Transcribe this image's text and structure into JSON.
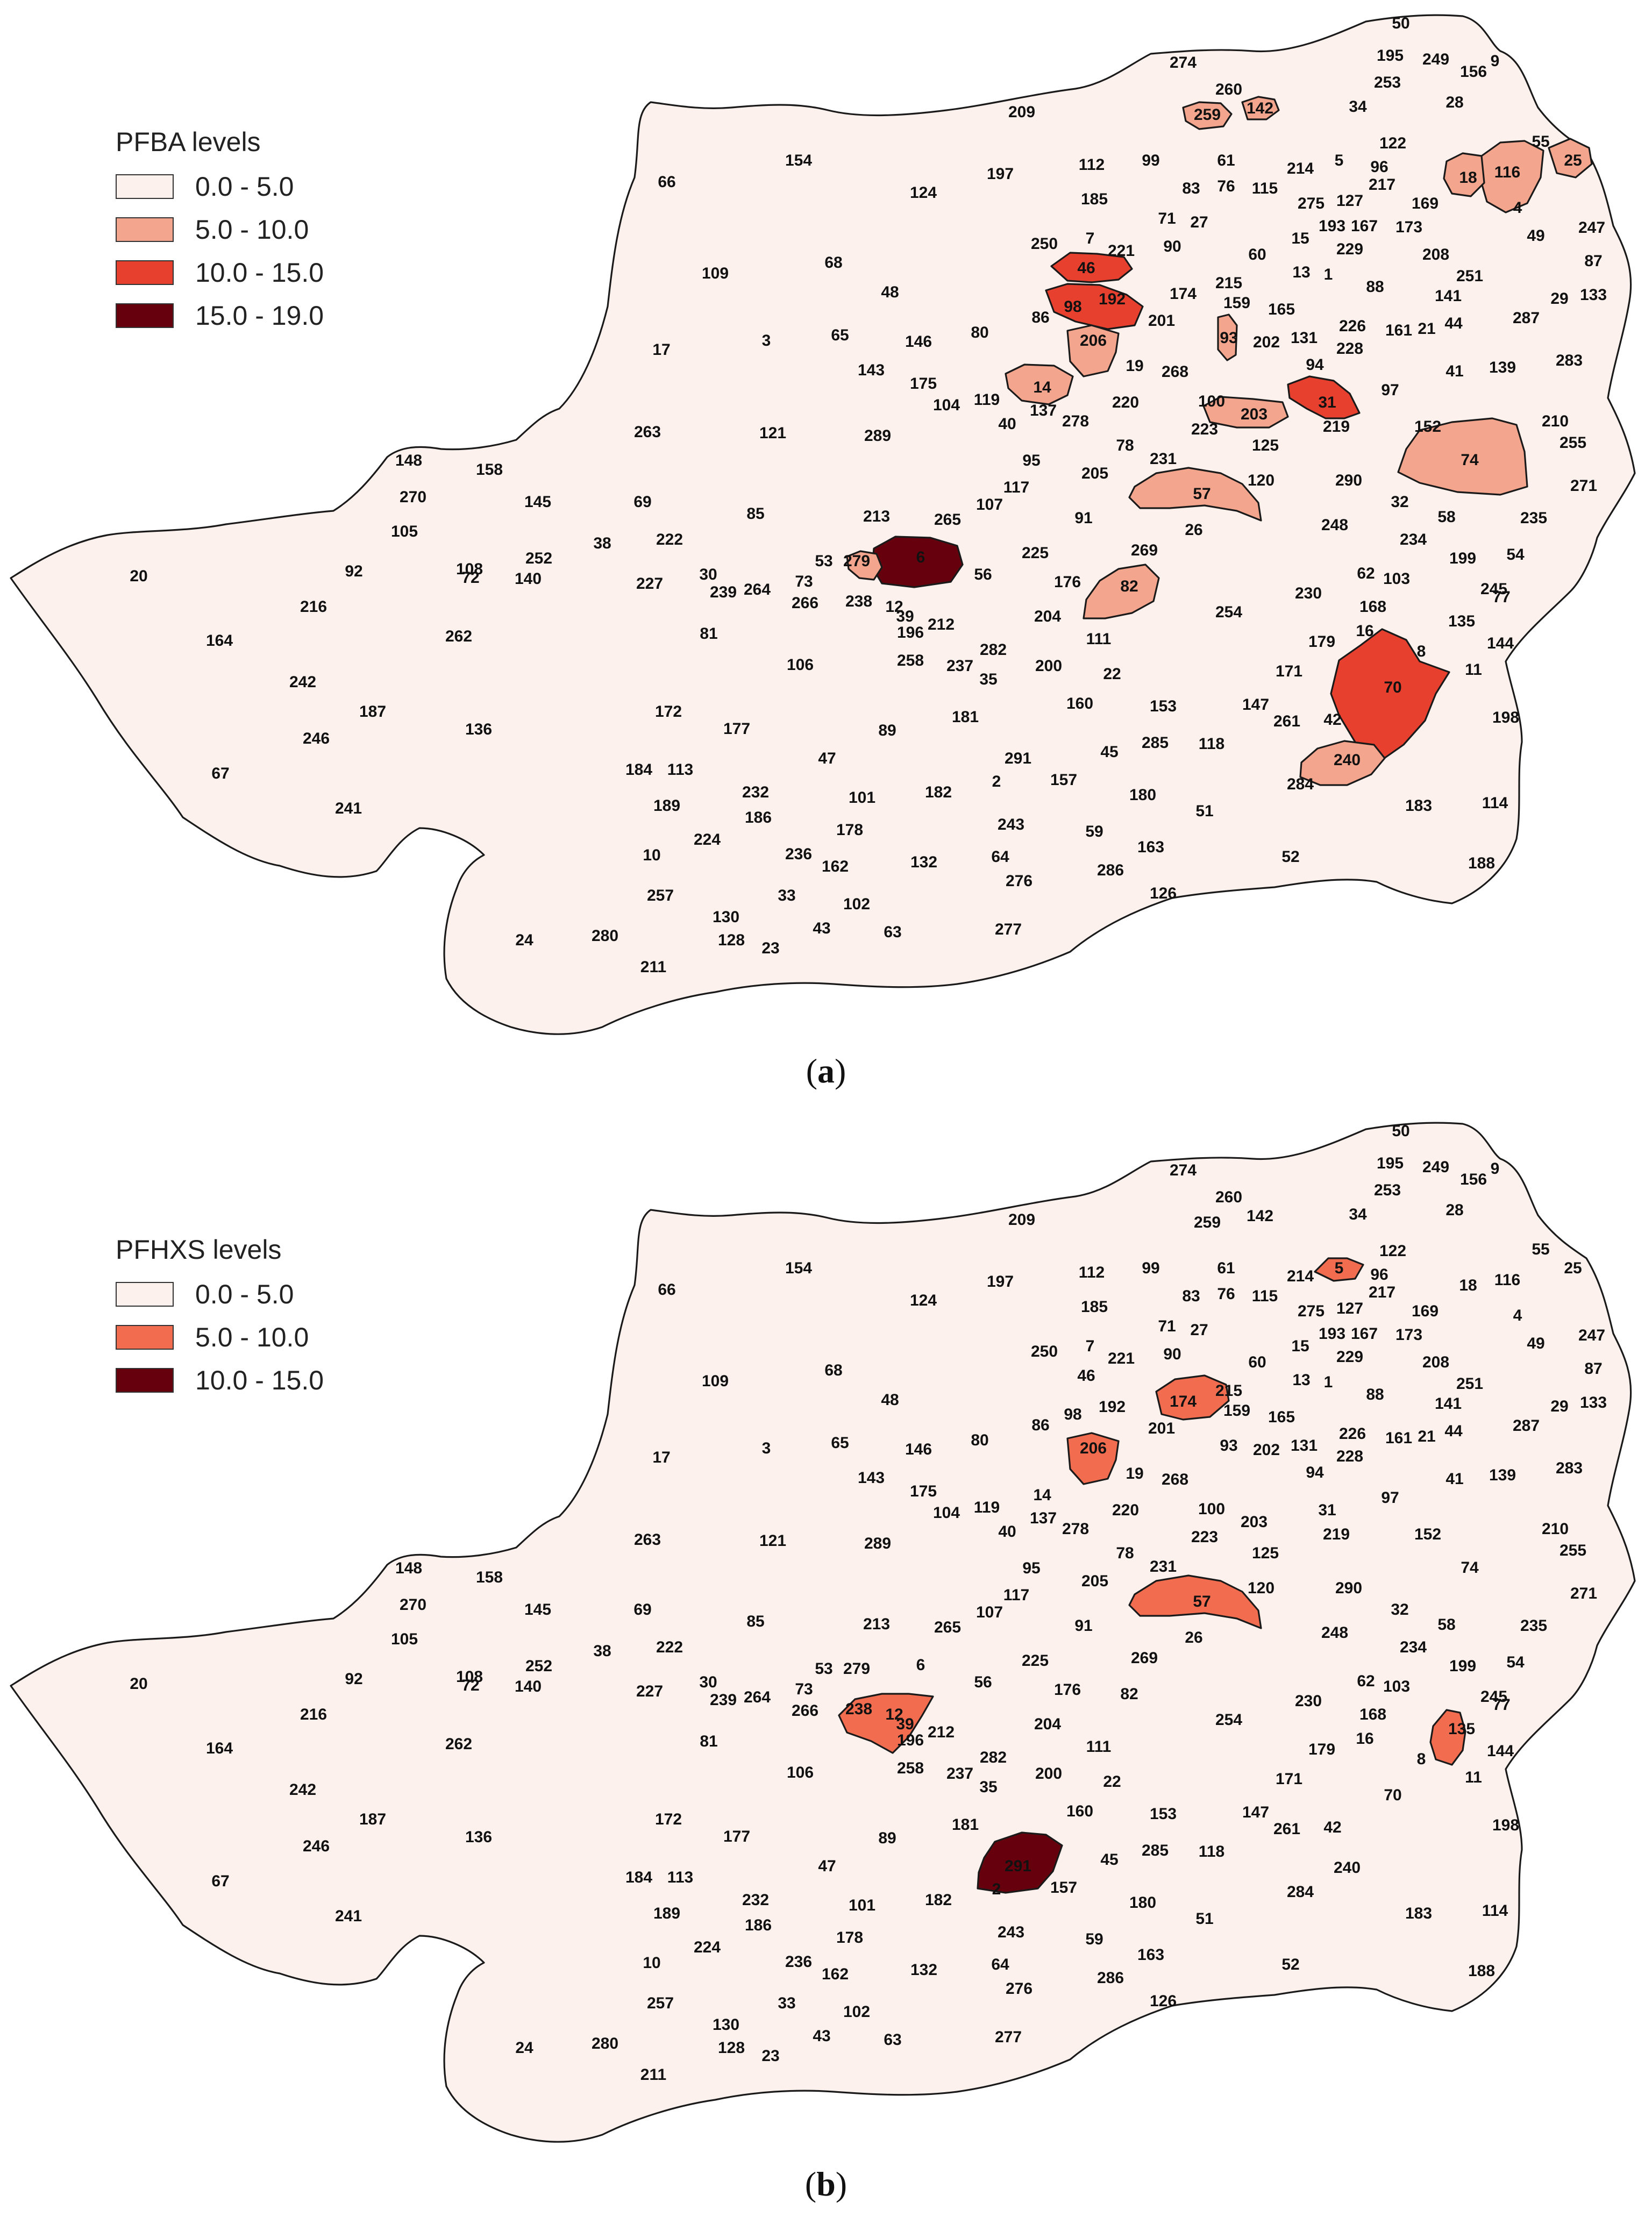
{
  "maps": [
    {
      "id": "a",
      "legend": {
        "title": "PFBA levels",
        "classes": [
          {
            "label": "0.0 - 5.0",
            "color": "#fdf1ee"
          },
          {
            "label": "5.0 - 10.0",
            "color": "#f4a58d"
          },
          {
            "label": "10.0 - 15.0",
            "color": "#e8402f"
          },
          {
            "label": "15.0 - 19.0",
            "color": "#67000d"
          }
        ]
      },
      "caption": {
        "open": "(",
        "letter": "a",
        "close": ")"
      },
      "highlighted": [
        {
          "region": "6",
          "class": 3
        },
        {
          "region": "46",
          "class": 2
        },
        {
          "region": "98",
          "class": 2
        },
        {
          "region": "31",
          "class": 2
        },
        {
          "region": "70",
          "class": 2
        },
        {
          "region": "14",
          "class": 1
        },
        {
          "region": "206",
          "class": 1
        },
        {
          "region": "203",
          "class": 1
        },
        {
          "region": "57",
          "class": 1
        },
        {
          "region": "82",
          "class": 1
        },
        {
          "region": "74",
          "class": 1
        },
        {
          "region": "240",
          "class": 1
        },
        {
          "region": "116",
          "class": 1
        },
        {
          "region": "25",
          "class": 1
        },
        {
          "region": "18",
          "class": 1
        },
        {
          "region": "259",
          "class": 1
        },
        {
          "region": "142",
          "class": 1
        },
        {
          "region": "279",
          "class": 1
        },
        {
          "region": "93",
          "class": 1
        }
      ]
    },
    {
      "id": "b",
      "legend": {
        "title": "PFHXS levels",
        "classes": [
          {
            "label": "0.0 - 5.0",
            "color": "#fdf1ee"
          },
          {
            "label": "5.0 - 10.0",
            "color": "#f26c4f"
          },
          {
            "label": "10.0 - 15.0",
            "color": "#67000d"
          }
        ]
      },
      "caption": {
        "open": "(",
        "letter": "b",
        "close": ")"
      },
      "highlighted": [
        {
          "region": "291",
          "class": 2
        },
        {
          "region": "206",
          "class": 1
        },
        {
          "region": "174",
          "class": 1
        },
        {
          "region": "57",
          "class": 1
        },
        {
          "region": "12",
          "class": 1
        },
        {
          "region": "135",
          "class": 1
        },
        {
          "region": "5",
          "class": 1
        }
      ]
    }
  ],
  "regions": [
    {
      "id": "50",
      "label": "50"
    },
    {
      "id": "195",
      "label": "195"
    },
    {
      "id": "249",
      "label": "249"
    },
    {
      "id": "156",
      "label": "156"
    },
    {
      "id": "9",
      "label": "9"
    },
    {
      "id": "274",
      "label": "274"
    },
    {
      "id": "260",
      "label": "260"
    },
    {
      "id": "253",
      "label": "253"
    },
    {
      "id": "28",
      "label": "28"
    },
    {
      "id": "34",
      "label": "34"
    },
    {
      "id": "259",
      "label": "259"
    },
    {
      "id": "142",
      "label": "142"
    },
    {
      "id": "209",
      "label": "209"
    },
    {
      "id": "122",
      "label": "122"
    },
    {
      "id": "55",
      "label": "55"
    },
    {
      "id": "25",
      "label": "25"
    },
    {
      "id": "5",
      "label": "5"
    },
    {
      "id": "96",
      "label": "96"
    },
    {
      "id": "214",
      "label": "214"
    },
    {
      "id": "112",
      "label": "112"
    },
    {
      "id": "99",
      "label": "99"
    },
    {
      "id": "61",
      "label": "61"
    },
    {
      "id": "18",
      "label": "18"
    },
    {
      "id": "116",
      "label": "116"
    },
    {
      "id": "154",
      "label": "154"
    },
    {
      "id": "197",
      "label": "197"
    },
    {
      "id": "66",
      "label": "66"
    },
    {
      "id": "124",
      "label": "124"
    },
    {
      "id": "185",
      "label": "185"
    },
    {
      "id": "83",
      "label": "83"
    },
    {
      "id": "76",
      "label": "76"
    },
    {
      "id": "115",
      "label": "115"
    },
    {
      "id": "275",
      "label": "275"
    },
    {
      "id": "127",
      "label": "127"
    },
    {
      "id": "217",
      "label": "217"
    },
    {
      "id": "169",
      "label": "169"
    },
    {
      "id": "4",
      "label": "4"
    },
    {
      "id": "71",
      "label": "71"
    },
    {
      "id": "27",
      "label": "27"
    },
    {
      "id": "193",
      "label": "193"
    },
    {
      "id": "167",
      "label": "167"
    },
    {
      "id": "173",
      "label": "173"
    },
    {
      "id": "247",
      "label": "247"
    },
    {
      "id": "49",
      "label": "49"
    },
    {
      "id": "15",
      "label": "15"
    },
    {
      "id": "229",
      "label": "229"
    },
    {
      "id": "87",
      "label": "87"
    },
    {
      "id": "250",
      "label": "250"
    },
    {
      "id": "7",
      "label": "7"
    },
    {
      "id": "221",
      "label": "221"
    },
    {
      "id": "90",
      "label": "90"
    },
    {
      "id": "60",
      "label": "60"
    },
    {
      "id": "208",
      "label": "208"
    },
    {
      "id": "109",
      "label": "109"
    },
    {
      "id": "68",
      "label": "68"
    },
    {
      "id": "46",
      "label": "46"
    },
    {
      "id": "13",
      "label": "13"
    },
    {
      "id": "1",
      "label": "1"
    },
    {
      "id": "251",
      "label": "251"
    },
    {
      "id": "215",
      "label": "215"
    },
    {
      "id": "88",
      "label": "88"
    },
    {
      "id": "48",
      "label": "48"
    },
    {
      "id": "174",
      "label": "174"
    },
    {
      "id": "192",
      "label": "192"
    },
    {
      "id": "141",
      "label": "141"
    },
    {
      "id": "29",
      "label": "29"
    },
    {
      "id": "133",
      "label": "133"
    },
    {
      "id": "86",
      "label": "86"
    },
    {
      "id": "98",
      "label": "98"
    },
    {
      "id": "159",
      "label": "159"
    },
    {
      "id": "165",
      "label": "165"
    },
    {
      "id": "201",
      "label": "201"
    },
    {
      "id": "226",
      "label": "226"
    },
    {
      "id": "161",
      "label": "161"
    },
    {
      "id": "21",
      "label": "21"
    },
    {
      "id": "44",
      "label": "44"
    },
    {
      "id": "287",
      "label": "287"
    },
    {
      "id": "80",
      "label": "80"
    },
    {
      "id": "3",
      "label": "3"
    },
    {
      "id": "65",
      "label": "65"
    },
    {
      "id": "146",
      "label": "146"
    },
    {
      "id": "93",
      "label": "93"
    },
    {
      "id": "202",
      "label": "202"
    },
    {
      "id": "131",
      "label": "131"
    },
    {
      "id": "17",
      "label": "17"
    },
    {
      "id": "206",
      "label": "206"
    },
    {
      "id": "228",
      "label": "228"
    },
    {
      "id": "283",
      "label": "283"
    },
    {
      "id": "19",
      "label": "19"
    },
    {
      "id": "268",
      "label": "268"
    },
    {
      "id": "94",
      "label": "94"
    },
    {
      "id": "143",
      "label": "143"
    },
    {
      "id": "41",
      "label": "41"
    },
    {
      "id": "139",
      "label": "139"
    },
    {
      "id": "175",
      "label": "175"
    },
    {
      "id": "104",
      "label": "104"
    },
    {
      "id": "119",
      "label": "119"
    },
    {
      "id": "14",
      "label": "14"
    },
    {
      "id": "97",
      "label": "97"
    },
    {
      "id": "137",
      "label": "137"
    },
    {
      "id": "100",
      "label": "100"
    },
    {
      "id": "203",
      "label": "203"
    },
    {
      "id": "31",
      "label": "31"
    },
    {
      "id": "263",
      "label": "263"
    },
    {
      "id": "121",
      "label": "121"
    },
    {
      "id": "289",
      "label": "289"
    },
    {
      "id": "40",
      "label": "40"
    },
    {
      "id": "278",
      "label": "278"
    },
    {
      "id": "220",
      "label": "220"
    },
    {
      "id": "223",
      "label": "223"
    },
    {
      "id": "219",
      "label": "219"
    },
    {
      "id": "152",
      "label": "152"
    },
    {
      "id": "210",
      "label": "210"
    },
    {
      "id": "255",
      "label": "255"
    },
    {
      "id": "78",
      "label": "78"
    },
    {
      "id": "125",
      "label": "125"
    },
    {
      "id": "74",
      "label": "74"
    },
    {
      "id": "148",
      "label": "148"
    },
    {
      "id": "158",
      "label": "158"
    },
    {
      "id": "95",
      "label": "95"
    },
    {
      "id": "231",
      "label": "231"
    },
    {
      "id": "205",
      "label": "205"
    },
    {
      "id": "120",
      "label": "120"
    },
    {
      "id": "290",
      "label": "290"
    },
    {
      "id": "271",
      "label": "271"
    },
    {
      "id": "270",
      "label": "270"
    },
    {
      "id": "145",
      "label": "145"
    },
    {
      "id": "117",
      "label": "117"
    },
    {
      "id": "69",
      "label": "69"
    },
    {
      "id": "85",
      "label": "85"
    },
    {
      "id": "213",
      "label": "213"
    },
    {
      "id": "265",
      "label": "265"
    },
    {
      "id": "107",
      "label": "107"
    },
    {
      "id": "91",
      "label": "91"
    },
    {
      "id": "57",
      "label": "57"
    },
    {
      "id": "32",
      "label": "32"
    },
    {
      "id": "58",
      "label": "58"
    },
    {
      "id": "235",
      "label": "235"
    },
    {
      "id": "105",
      "label": "105"
    },
    {
      "id": "222",
      "label": "222"
    },
    {
      "id": "26",
      "label": "26"
    },
    {
      "id": "248",
      "label": "248"
    },
    {
      "id": "234",
      "label": "234"
    },
    {
      "id": "38",
      "label": "38"
    },
    {
      "id": "252",
      "label": "252"
    },
    {
      "id": "72",
      "label": "72"
    },
    {
      "id": "108",
      "label": "108"
    },
    {
      "id": "92",
      "label": "92"
    },
    {
      "id": "140",
      "label": "140"
    },
    {
      "id": "53",
      "label": "53"
    },
    {
      "id": "279",
      "label": "279"
    },
    {
      "id": "6",
      "label": "6"
    },
    {
      "id": "225",
      "label": "225"
    },
    {
      "id": "269",
      "label": "269"
    },
    {
      "id": "199",
      "label": "199"
    },
    {
      "id": "54",
      "label": "54"
    },
    {
      "id": "20",
      "label": "20"
    },
    {
      "id": "227",
      "label": "227"
    },
    {
      "id": "30",
      "label": "30"
    },
    {
      "id": "239",
      "label": "239"
    },
    {
      "id": "264",
      "label": "264"
    },
    {
      "id": "73",
      "label": "73"
    },
    {
      "id": "56",
      "label": "56"
    },
    {
      "id": "176",
      "label": "176"
    },
    {
      "id": "82",
      "label": "82"
    },
    {
      "id": "62",
      "label": "62"
    },
    {
      "id": "103",
      "label": "103"
    },
    {
      "id": "230",
      "label": "230"
    },
    {
      "id": "245",
      "label": "245"
    },
    {
      "id": "77",
      "label": "77"
    },
    {
      "id": "216",
      "label": "216"
    },
    {
      "id": "266",
      "label": "266"
    },
    {
      "id": "238",
      "label": "238"
    },
    {
      "id": "12",
      "label": "12"
    },
    {
      "id": "168",
      "label": "168"
    },
    {
      "id": "254",
      "label": "254"
    },
    {
      "id": "39",
      "label": "39"
    },
    {
      "id": "212",
      "label": "212"
    },
    {
      "id": "204",
      "label": "204"
    },
    {
      "id": "135",
      "label": "135"
    },
    {
      "id": "164",
      "label": "164"
    },
    {
      "id": "262",
      "label": "262"
    },
    {
      "id": "81",
      "label": "81"
    },
    {
      "id": "196",
      "label": "196"
    },
    {
      "id": "111",
      "label": "111"
    },
    {
      "id": "16",
      "label": "16"
    },
    {
      "id": "179",
      "label": "179"
    },
    {
      "id": "144",
      "label": "144"
    },
    {
      "id": "282",
      "label": "282"
    },
    {
      "id": "8",
      "label": "8"
    },
    {
      "id": "258",
      "label": "258"
    },
    {
      "id": "11",
      "label": "11"
    },
    {
      "id": "106",
      "label": "106"
    },
    {
      "id": "237",
      "label": "237"
    },
    {
      "id": "200",
      "label": "200"
    },
    {
      "id": "242",
      "label": "242"
    },
    {
      "id": "35",
      "label": "35"
    },
    {
      "id": "22",
      "label": "22"
    },
    {
      "id": "171",
      "label": "171"
    },
    {
      "id": "70",
      "label": "70"
    },
    {
      "id": "187",
      "label": "187"
    },
    {
      "id": "160",
      "label": "160"
    },
    {
      "id": "153",
      "label": "153"
    },
    {
      "id": "147",
      "label": "147"
    },
    {
      "id": "198",
      "label": "198"
    },
    {
      "id": "172",
      "label": "172"
    },
    {
      "id": "181",
      "label": "181"
    },
    {
      "id": "261",
      "label": "261"
    },
    {
      "id": "42",
      "label": "42"
    },
    {
      "id": "136",
      "label": "136"
    },
    {
      "id": "177",
      "label": "177"
    },
    {
      "id": "89",
      "label": "89"
    },
    {
      "id": "246",
      "label": "246"
    },
    {
      "id": "285",
      "label": "285"
    },
    {
      "id": "118",
      "label": "118"
    },
    {
      "id": "45",
      "label": "45"
    },
    {
      "id": "47",
      "label": "47"
    },
    {
      "id": "291",
      "label": "291"
    },
    {
      "id": "240",
      "label": "240"
    },
    {
      "id": "184",
      "label": "184"
    },
    {
      "id": "113",
      "label": "113"
    },
    {
      "id": "157",
      "label": "157"
    },
    {
      "id": "2",
      "label": "2"
    },
    {
      "id": "67",
      "label": "67"
    },
    {
      "id": "232",
      "label": "232"
    },
    {
      "id": "182",
      "label": "182"
    },
    {
      "id": "101",
      "label": "101"
    },
    {
      "id": "180",
      "label": "180"
    },
    {
      "id": "284",
      "label": "284"
    },
    {
      "id": "189",
      "label": "189"
    },
    {
      "id": "186",
      "label": "186"
    },
    {
      "id": "241",
      "label": "241"
    },
    {
      "id": "183",
      "label": "183"
    },
    {
      "id": "114",
      "label": "114"
    },
    {
      "id": "178",
      "label": "178"
    },
    {
      "id": "51",
      "label": "51"
    },
    {
      "id": "243",
      "label": "243"
    },
    {
      "id": "59",
      "label": "59"
    },
    {
      "id": "224",
      "label": "224"
    },
    {
      "id": "10",
      "label": "10"
    },
    {
      "id": "236",
      "label": "236"
    },
    {
      "id": "163",
      "label": "163"
    },
    {
      "id": "162",
      "label": "162"
    },
    {
      "id": "132",
      "label": "132"
    },
    {
      "id": "64",
      "label": "64"
    },
    {
      "id": "52",
      "label": "52"
    },
    {
      "id": "188",
      "label": "188"
    },
    {
      "id": "257",
      "label": "257"
    },
    {
      "id": "286",
      "label": "286"
    },
    {
      "id": "276",
      "label": "276"
    },
    {
      "id": "33",
      "label": "33"
    },
    {
      "id": "130",
      "label": "130"
    },
    {
      "id": "102",
      "label": "102"
    },
    {
      "id": "126",
      "label": "126"
    },
    {
      "id": "24",
      "label": "24"
    },
    {
      "id": "280",
      "label": "280"
    },
    {
      "id": "128",
      "label": "128"
    },
    {
      "id": "43",
      "label": "43"
    },
    {
      "id": "63",
      "label": "63"
    },
    {
      "id": "277",
      "label": "277"
    },
    {
      "id": "23",
      "label": "23"
    },
    {
      "id": "211",
      "label": "211"
    }
  ]
}
